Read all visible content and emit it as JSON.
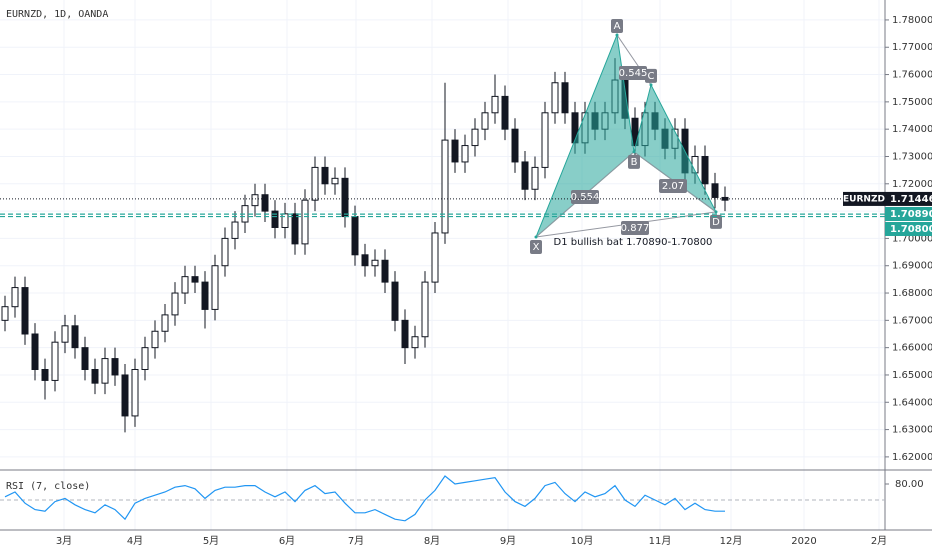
{
  "header": {
    "symbol_info": "EURNZD, 1D, OANDA"
  },
  "chart_data": [
    {
      "type": "candlestick",
      "open": [
        1.67,
        1.675,
        1.682,
        1.665,
        1.652,
        1.648,
        1.662,
        1.668,
        1.66,
        1.652,
        1.647,
        1.656,
        1.65,
        1.635,
        1.652,
        1.66,
        1.666,
        1.672,
        1.68,
        1.686,
        1.684,
        1.674,
        1.69,
        1.7,
        1.706,
        1.712,
        1.716,
        1.71,
        1.704,
        1.709,
        1.698,
        1.714,
        1.726,
        1.72,
        1.722,
        1.708,
        1.694,
        1.69,
        1.692,
        1.684,
        1.67,
        1.66,
        1.664,
        1.684,
        1.702,
        1.736,
        1.728,
        1.734,
        1.74,
        1.746,
        1.752,
        1.74,
        1.728,
        1.718,
        1.726,
        1.746,
        1.757,
        1.746,
        1.735,
        1.746,
        1.74,
        1.746,
        1.758,
        1.744,
        1.734,
        1.746,
        1.74,
        1.733,
        1.74,
        1.724,
        1.73,
        1.72,
        1.715
      ],
      "high": [
        1.679,
        1.686,
        1.686,
        1.669,
        1.656,
        1.666,
        1.672,
        1.672,
        1.664,
        1.656,
        1.66,
        1.66,
        1.654,
        1.656,
        1.664,
        1.67,
        1.676,
        1.684,
        1.69,
        1.69,
        1.688,
        1.694,
        1.704,
        1.71,
        1.716,
        1.72,
        1.72,
        1.714,
        1.713,
        1.713,
        1.718,
        1.73,
        1.73,
        1.726,
        1.726,
        1.712,
        1.698,
        1.696,
        1.696,
        1.688,
        1.674,
        1.668,
        1.688,
        1.706,
        1.757,
        1.74,
        1.738,
        1.744,
        1.75,
        1.76,
        1.756,
        1.744,
        1.732,
        1.73,
        1.75,
        1.761,
        1.761,
        1.75,
        1.75,
        1.75,
        1.75,
        1.766,
        1.762,
        1.748,
        1.75,
        1.75,
        1.744,
        1.744,
        1.744,
        1.734,
        1.734,
        1.724,
        1.719
      ],
      "low": [
        1.666,
        1.671,
        1.661,
        1.648,
        1.641,
        1.644,
        1.658,
        1.656,
        1.648,
        1.643,
        1.643,
        1.646,
        1.629,
        1.631,
        1.648,
        1.656,
        1.662,
        1.668,
        1.676,
        1.68,
        1.667,
        1.67,
        1.686,
        1.696,
        1.702,
        1.708,
        1.706,
        1.7,
        1.7,
        1.694,
        1.694,
        1.71,
        1.716,
        1.716,
        1.704,
        1.69,
        1.686,
        1.686,
        1.68,
        1.666,
        1.654,
        1.656,
        1.66,
        1.68,
        1.698,
        1.724,
        1.724,
        1.73,
        1.736,
        1.742,
        1.736,
        1.724,
        1.714,
        1.714,
        1.722,
        1.742,
        1.742,
        1.731,
        1.731,
        1.736,
        1.736,
        1.742,
        1.74,
        1.73,
        1.73,
        1.736,
        1.729,
        1.729,
        1.72,
        1.72,
        1.716,
        1.711,
        1.71
      ],
      "close": [
        1.675,
        1.682,
        1.665,
        1.652,
        1.648,
        1.662,
        1.668,
        1.66,
        1.652,
        1.647,
        1.656,
        1.65,
        1.635,
        1.652,
        1.66,
        1.666,
        1.672,
        1.68,
        1.686,
        1.684,
        1.674,
        1.69,
        1.7,
        1.706,
        1.712,
        1.716,
        1.71,
        1.704,
        1.709,
        1.698,
        1.714,
        1.726,
        1.72,
        1.722,
        1.708,
        1.694,
        1.69,
        1.692,
        1.684,
        1.67,
        1.66,
        1.664,
        1.684,
        1.702,
        1.736,
        1.728,
        1.734,
        1.74,
        1.746,
        1.752,
        1.74,
        1.728,
        1.718,
        1.726,
        1.746,
        1.757,
        1.746,
        1.735,
        1.746,
        1.74,
        1.746,
        1.758,
        1.744,
        1.734,
        1.746,
        1.74,
        1.733,
        1.74,
        1.724,
        1.73,
        1.72,
        1.715,
        1.714
      ],
      "up_color": "#ffffff",
      "down_color": "#131722",
      "ylim": [
        1.6152,
        1.7873
      ],
      "yticks": [
        {
          "value": 1.62,
          "label": "1.62000"
        },
        {
          "value": 1.63,
          "label": "1.63000"
        },
        {
          "value": 1.64,
          "label": "1.64000"
        },
        {
          "value": 1.65,
          "label": "1.65000"
        },
        {
          "value": 1.66,
          "label": "1.66000"
        },
        {
          "value": 1.67,
          "label": "1.67000"
        },
        {
          "value": 1.68,
          "label": "1.68000"
        },
        {
          "value": 1.69,
          "label": "1.69000"
        },
        {
          "value": 1.7,
          "label": "1.70000"
        },
        {
          "value": 1.71,
          "label": "1.71000"
        },
        {
          "value": 1.72,
          "label": "1.72000"
        },
        {
          "value": 1.73,
          "label": "1.73000"
        },
        {
          "value": 1.74,
          "label": "1.74000"
        },
        {
          "value": 1.75,
          "label": "1.75000"
        },
        {
          "value": 1.76,
          "label": "1.76000"
        },
        {
          "value": 1.77,
          "label": "1.77000"
        },
        {
          "value": 1.78,
          "label": "1.78000"
        }
      ],
      "xticks": [
        {
          "value": 5.9,
          "label": "3月"
        },
        {
          "value": 13,
          "label": "4月"
        },
        {
          "value": 20.6,
          "label": "5月"
        },
        {
          "value": 28.2,
          "label": "6月"
        },
        {
          "value": 35.1,
          "label": "7月"
        },
        {
          "value": 42.7,
          "label": "8月"
        },
        {
          "value": 50.3,
          "label": "9月"
        },
        {
          "value": 57.7,
          "label": "10月"
        },
        {
          "value": 65.5,
          "label": "11月"
        },
        {
          "value": 72.6,
          "label": "12月"
        },
        {
          "value": 79.9,
          "label": "2020"
        },
        {
          "value": 87.4,
          "label": "2月"
        }
      ],
      "grid": true,
      "last_price": {
        "label": "EURNZD",
        "value": 1.71446
      },
      "levels": [
        {
          "value": 1.7089,
          "label": "1.70890"
        },
        {
          "value": 1.708,
          "label": "1.70800"
        }
      ],
      "level_color": "#26a69a",
      "pattern": {
        "color": "#26a69a",
        "points": [
          {
            "label": "X",
            "x": 53.1,
            "y": 1.7005
          },
          {
            "label": "A",
            "x": 61.2,
            "y": 1.7745
          },
          {
            "label": "B",
            "x": 62.9,
            "y": 1.7317
          },
          {
            "label": "C",
            "x": 64.6,
            "y": 1.7562
          },
          {
            "label": "D",
            "x": 71.1,
            "y": 1.7097
          }
        ],
        "ratios": [
          "0.545",
          "0.554",
          "2.07",
          "0.877"
        ],
        "description": "D1 bullish bat 1.70890-1.70800"
      }
    },
    {
      "type": "line",
      "title": "RSI (7, close)",
      "values": [
        72,
        75,
        68,
        64,
        63,
        69,
        71,
        67,
        64,
        62,
        67,
        64,
        58,
        68,
        71,
        73,
        75,
        78,
        79,
        77,
        71,
        76,
        78,
        78,
        79,
        79,
        75,
        72,
        75,
        69,
        76,
        79,
        74,
        75,
        68,
        62,
        62,
        64,
        61,
        58,
        57,
        61,
        70,
        76,
        85,
        80,
        81,
        82,
        83,
        84,
        75,
        69,
        66,
        71,
        79,
        81,
        74,
        69,
        75,
        72,
        74,
        79,
        70,
        66,
        73,
        70,
        67,
        71,
        64,
        68,
        64,
        63,
        63
      ],
      "color": "#2196f3",
      "ylim": [
        51.25,
        87.5
      ],
      "yticks": [
        {
          "value": 80,
          "label": "80.00"
        }
      ],
      "reference_line": 70
    }
  ]
}
